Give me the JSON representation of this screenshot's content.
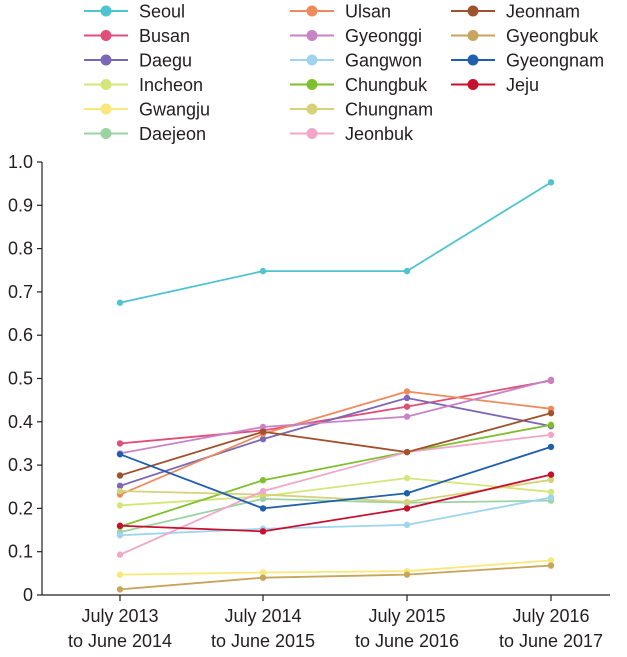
{
  "chart_data": {
    "type": "line",
    "title": "",
    "xlabel": "",
    "ylabel": "",
    "ylim": [
      0,
      1.0
    ],
    "y_ticks": [
      "0",
      "0.1",
      "0.2",
      "0.3",
      "0.4",
      "0.5",
      "0.6",
      "0.7",
      "0.8",
      "0.9",
      "1.0"
    ],
    "categories": [
      [
        "July 2013",
        "to June 2014"
      ],
      [
        "July 2014",
        "to June 2015"
      ],
      [
        "July 2015",
        "to June 2016"
      ],
      [
        "July 2016",
        "to June 2017"
      ]
    ],
    "legend_placement": "top",
    "series": [
      {
        "name": "Seoul",
        "color": "#4fc3cf",
        "values": [
          0.675,
          0.748,
          0.748,
          0.953
        ]
      },
      {
        "name": "Busan",
        "color": "#e04f78",
        "values": [
          0.35,
          0.38,
          0.435,
          0.495
        ]
      },
      {
        "name": "Daegu",
        "color": "#7b68b5",
        "values": [
          0.252,
          0.36,
          0.455,
          0.39
        ]
      },
      {
        "name": "Incheon",
        "color": "#d4e57a",
        "values": [
          0.207,
          0.228,
          0.27,
          0.238
        ]
      },
      {
        "name": "Gwangju",
        "color": "#f9e87a",
        "values": [
          0.047,
          0.052,
          0.055,
          0.08
        ]
      },
      {
        "name": "Daejeon",
        "color": "#9bd3a4",
        "values": [
          0.145,
          0.222,
          0.213,
          0.218
        ]
      },
      {
        "name": "Ulsan",
        "color": "#f08a5d",
        "values": [
          0.232,
          0.372,
          0.47,
          0.43
        ]
      },
      {
        "name": "Gyeonggi",
        "color": "#c883c6",
        "values": [
          0.327,
          0.388,
          0.412,
          0.497
        ]
      },
      {
        "name": "Gangwon",
        "color": "#9fd4f0",
        "values": [
          0.138,
          0.153,
          0.162,
          0.225
        ]
      },
      {
        "name": "Chungbuk",
        "color": "#7fbf2f",
        "values": [
          0.158,
          0.265,
          0.33,
          0.393
        ]
      },
      {
        "name": "Chungnam",
        "color": "#d6d27a",
        "values": [
          0.24,
          0.232,
          0.215,
          0.266
        ]
      },
      {
        "name": "Jeonbuk",
        "color": "#f2a7c8",
        "values": [
          0.093,
          0.24,
          0.33,
          0.37
        ]
      },
      {
        "name": "Jeonnam",
        "color": "#a0522d",
        "values": [
          0.276,
          0.377,
          0.33,
          0.42
        ]
      },
      {
        "name": "Gyeongbuk",
        "color": "#c8a45c",
        "values": [
          0.013,
          0.04,
          0.047,
          0.068
        ]
      },
      {
        "name": "Gyeongnam",
        "color": "#1f5fae",
        "values": [
          0.325,
          0.2,
          0.235,
          0.342
        ]
      },
      {
        "name": "Jeju",
        "color": "#c8102e",
        "values": [
          0.16,
          0.147,
          0.2,
          0.278
        ]
      }
    ]
  }
}
